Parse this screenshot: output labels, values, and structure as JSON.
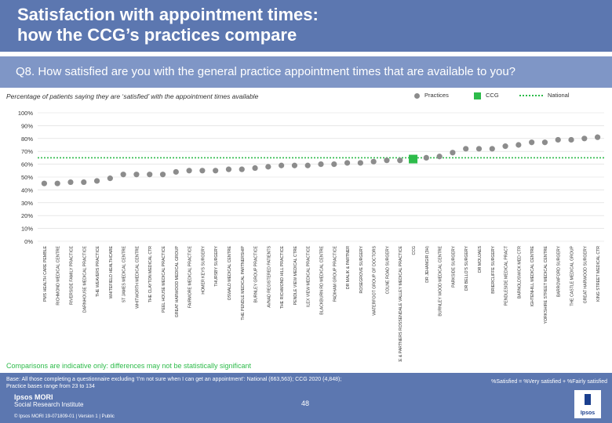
{
  "header": {
    "title_line1": "Satisfaction with appointment times:",
    "title_line2": "how the CCG’s practices compare"
  },
  "question": "Q8. How satisfied are you with the general practice appointment times that are available to you?",
  "subtitle": "Percentage of patients saying they are ‘satisfied’ with the appointment times available",
  "legend": {
    "practices": "Practices",
    "ccg": "CCG",
    "national": "National"
  },
  "colors": {
    "header": "#5c77b0",
    "question_bar": "#7f96c6",
    "practice_dot": "#8c8c8c",
    "ccg": "#2dbb4a",
    "national": "#2dbb4a"
  },
  "chart_data": {
    "type": "scatter",
    "ylim": [
      0,
      100
    ],
    "y_ticks": [
      0,
      10,
      20,
      30,
      40,
      50,
      60,
      70,
      80,
      90,
      100
    ],
    "y_tick_labels": [
      "0%",
      "10%",
      "20%",
      "30%",
      "40%",
      "50%",
      "60%",
      "70%",
      "80%",
      "90%",
      "100%"
    ],
    "national_value": 65,
    "categories": [
      "PMS HEALTH CARE PEMBLE",
      "RICHMOND MEDICAL CENTRE",
      "RIVERSIDE FAMILY PRACTICE",
      "DARNHOUSE MEDICAL PRACTICE",
      "THE WEAVERS PRACTICE",
      "WHITEFIELD HEALTHCARE",
      "ST JAMES MEDICAL CENTRE",
      "WHITWORTH MEDICAL CENTRE",
      "THE CLAYTON MEDICAL CTR",
      "PEEL HOUSE MEDICAL PRACTICE",
      "GREAT HARWOOD MEDICAL GROUP",
      "FAIRMORE MEDICAL PRACTICE",
      "HOMER KEYS SURGERY",
      "THURSBY SURGERY",
      "OSWALD MEDICAL CENTRE",
      "THE PENDLE MEDICAL PARTNERSHIP",
      "BURNLEY GROUP PRACTICE",
      "AVNAD REGISTERED PATIENTS",
      "THE RICHMOND HILL PRACTICE",
      "PENDLE VIEW MEDICAL CTRE",
      "ILEX VIEW MEDICAL PRACTICE",
      "BLACKBURN RD MEDICAL CENTRE",
      "PADIHAM GROUP PRACTICE",
      "DR MALIK & PARTNER",
      "ROSEGROVE SURGERY",
      "WATERFOOT GROUP OF DOCTORS",
      "COLNE ROAD SURGERY",
      "DR THIMMARAGIRICE & PARTNERS ROSSENDALE VALLEY MEDICAL PRACTICE",
      "CCG",
      "DR JEHANGIR (3H)",
      "BURNLEY WOOD MEDICAL CENTRE",
      "PARKSIDE SURGERY",
      "DR BELLO'S SURGERY",
      "DR MOUJAES",
      "BRIERCLIFFE SURGERY",
      "PENDLESIDE MEDICAL PRACT",
      "BARNOLDSWICK MED CTR",
      "IGHTENHILL MEDICAL CENTRE",
      "YORKSHIRE STREET MEDICAL CENTRE",
      "BARROWFORD SURGERY",
      "THE CASTLE MEDICAL GROUP",
      "GREAT HARWOOD SURGERY",
      "KING STREET MEDICAL CTR"
    ],
    "values": [
      45,
      45,
      46,
      46,
      47,
      49,
      52,
      52,
      52,
      52,
      54,
      55,
      55,
      55,
      56,
      56,
      57,
      58,
      59,
      59,
      59,
      60,
      60,
      61,
      61,
      62,
      63,
      63,
      64,
      65,
      66,
      69,
      72,
      72,
      72,
      74,
      75,
      77,
      77,
      79,
      79,
      80,
      81
    ],
    "ccg_index": 28
  },
  "note": "Comparisons are indicative only: differences may not be statistically significant",
  "footer": {
    "base_line1": "Base: All those completing a questionnaire excluding ‘I’m not sure when I can get an appointment’: National (663,563); CCG 2020 (4,848);",
    "base_line2": "Practice bases range from 23 to 134",
    "formula": "%Satisfied = %Very satisfied + %Fairly satisfied",
    "brand_line1": "Ipsos MORI",
    "brand_line2": "Social Research Institute",
    "page_number": "48",
    "copyright": "© Ipsos MORI     19-071809-01 | Version 1 | Public",
    "logo_text": "Ipsos"
  }
}
